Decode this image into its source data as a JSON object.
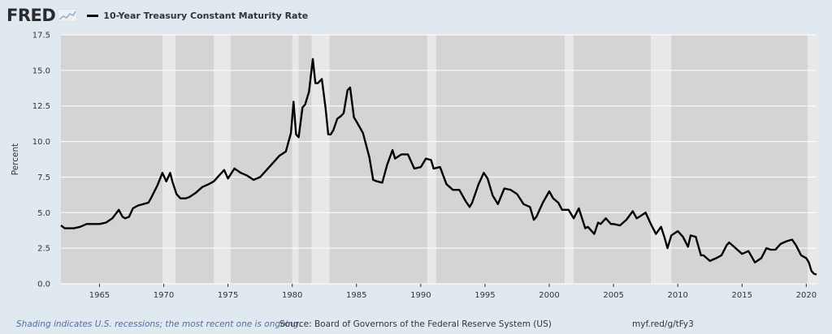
{
  "header": {
    "logo_text": "FRED",
    "logo_icon": "fred-sparkline-icon",
    "series_title": "10-Year Treasury Constant Maturity Rate"
  },
  "footer": {
    "recession_note": "Shading indicates U.S. recessions; the most recent one is ongoing.",
    "source": "Source: Board of Governors of the Federal Reserve System (US)",
    "shortlink": "myf.red/g/tFy3"
  },
  "colors": {
    "page_bg": "#e1e9f0",
    "plot_bg": "#d6d4d2",
    "recession_shade": "#e8e8e8",
    "line": "#000000",
    "grid": "#ffffff"
  },
  "chart_data": {
    "type": "line",
    "title": "10-Year Treasury Constant Maturity Rate",
    "xlabel": "",
    "ylabel": "Percent",
    "xlim": [
      1962.0,
      2020.8
    ],
    "ylim": [
      0,
      17.5
    ],
    "yticks": [
      "0.0",
      "2.5",
      "5.0",
      "7.5",
      "10.0",
      "12.5",
      "15.0",
      "17.5"
    ],
    "xticks": [
      "1965",
      "1970",
      "1975",
      "1980",
      "1985",
      "1990",
      "1995",
      "2000",
      "2005",
      "2010",
      "2015",
      "2020"
    ],
    "grid": true,
    "recessions": [
      [
        1969.9,
        1970.9
      ],
      [
        1973.9,
        1975.2
      ],
      [
        1980.0,
        1980.5
      ],
      [
        1981.5,
        1982.9
      ],
      [
        1990.5,
        1991.2
      ],
      [
        2001.2,
        2001.9
      ],
      [
        2007.9,
        2009.5
      ],
      [
        2020.1,
        2020.8
      ]
    ],
    "series": [
      {
        "name": "10-Year Treasury Constant Maturity Rate",
        "x": [
          1962.0,
          1962.3,
          1962.6,
          1963.0,
          1963.5,
          1964.0,
          1964.5,
          1965.0,
          1965.5,
          1966.0,
          1966.5,
          1966.8,
          1967.0,
          1967.3,
          1967.6,
          1968.0,
          1968.4,
          1968.8,
          1969.0,
          1969.5,
          1969.9,
          1970.2,
          1970.5,
          1970.7,
          1971.0,
          1971.3,
          1971.7,
          1972.0,
          1972.5,
          1973.0,
          1973.5,
          1973.9,
          1974.3,
          1974.7,
          1975.0,
          1975.5,
          1976.0,
          1976.5,
          1977.0,
          1977.5,
          1978.0,
          1978.5,
          1979.0,
          1979.5,
          1979.9,
          1980.1,
          1980.3,
          1980.5,
          1980.8,
          1981.0,
          1981.3,
          1981.6,
          1981.8,
          1982.0,
          1982.3,
          1982.6,
          1982.8,
          1983.0,
          1983.2,
          1983.5,
          1983.8,
          1984.0,
          1984.3,
          1984.5,
          1984.8,
          1985.0,
          1985.5,
          1986.0,
          1986.3,
          1986.6,
          1987.0,
          1987.4,
          1987.8,
          1988.0,
          1988.5,
          1989.0,
          1989.5,
          1990.0,
          1990.4,
          1990.8,
          1991.0,
          1991.5,
          1992.0,
          1992.5,
          1993.0,
          1993.5,
          1993.8,
          1994.0,
          1994.5,
          1994.9,
          1995.2,
          1995.6,
          1996.0,
          1996.5,
          1997.0,
          1997.5,
          1998.0,
          1998.5,
          1998.8,
          1999.0,
          1999.5,
          2000.0,
          2000.3,
          2000.7,
          2001.0,
          2001.5,
          2001.9,
          2002.3,
          2002.8,
          2003.0,
          2003.5,
          2003.8,
          2004.0,
          2004.4,
          2004.8,
          2005.0,
          2005.5,
          2006.0,
          2006.5,
          2006.8,
          2007.0,
          2007.5,
          2007.9,
          2008.3,
          2008.7,
          2008.95,
          2009.2,
          2009.5,
          2010.0,
          2010.4,
          2010.8,
          2011.0,
          2011.4,
          2011.8,
          2012.0,
          2012.5,
          2013.0,
          2013.4,
          2013.8,
          2014.0,
          2014.5,
          2015.0,
          2015.5,
          2016.0,
          2016.5,
          2016.9,
          2017.2,
          2017.6,
          2018.0,
          2018.5,
          2018.9,
          2019.2,
          2019.6,
          2020.0,
          2020.2,
          2020.4,
          2020.6,
          2020.8
        ],
        "values": [
          4.1,
          3.9,
          3.9,
          3.9,
          4.0,
          4.2,
          4.2,
          4.2,
          4.3,
          4.6,
          5.2,
          4.7,
          4.6,
          4.7,
          5.3,
          5.5,
          5.6,
          5.7,
          6.0,
          6.9,
          7.8,
          7.2,
          7.8,
          7.1,
          6.3,
          6.0,
          6.0,
          6.1,
          6.4,
          6.8,
          7.0,
          7.2,
          7.6,
          8.0,
          7.4,
          8.1,
          7.8,
          7.6,
          7.3,
          7.5,
          8.0,
          8.5,
          9.0,
          9.3,
          10.6,
          12.8,
          10.5,
          10.3,
          12.4,
          12.6,
          13.5,
          15.8,
          14.1,
          14.1,
          14.4,
          12.3,
          10.5,
          10.5,
          10.8,
          11.6,
          11.8,
          12.0,
          13.6,
          13.8,
          11.7,
          11.4,
          10.6,
          8.9,
          7.3,
          7.2,
          7.1,
          8.4,
          9.4,
          8.8,
          9.1,
          9.1,
          8.1,
          8.2,
          8.8,
          8.7,
          8.1,
          8.2,
          7.0,
          6.6,
          6.6,
          5.8,
          5.4,
          5.7,
          7.0,
          7.8,
          7.4,
          6.2,
          5.6,
          6.7,
          6.6,
          6.3,
          5.6,
          5.4,
          4.5,
          4.7,
          5.7,
          6.5,
          6.0,
          5.7,
          5.2,
          5.2,
          4.6,
          5.3,
          3.9,
          4.0,
          3.5,
          4.3,
          4.2,
          4.6,
          4.2,
          4.2,
          4.1,
          4.5,
          5.1,
          4.6,
          4.7,
          5.0,
          4.2,
          3.5,
          4.0,
          3.3,
          2.5,
          3.4,
          3.7,
          3.3,
          2.6,
          3.4,
          3.3,
          2.0,
          2.0,
          1.6,
          1.8,
          2.0,
          2.7,
          2.9,
          2.5,
          2.1,
          2.3,
          1.5,
          1.8,
          2.5,
          2.4,
          2.4,
          2.8,
          3.0,
          3.1,
          2.7,
          2.0,
          1.8,
          1.5,
          0.9,
          0.7,
          0.65
        ]
      }
    ]
  }
}
